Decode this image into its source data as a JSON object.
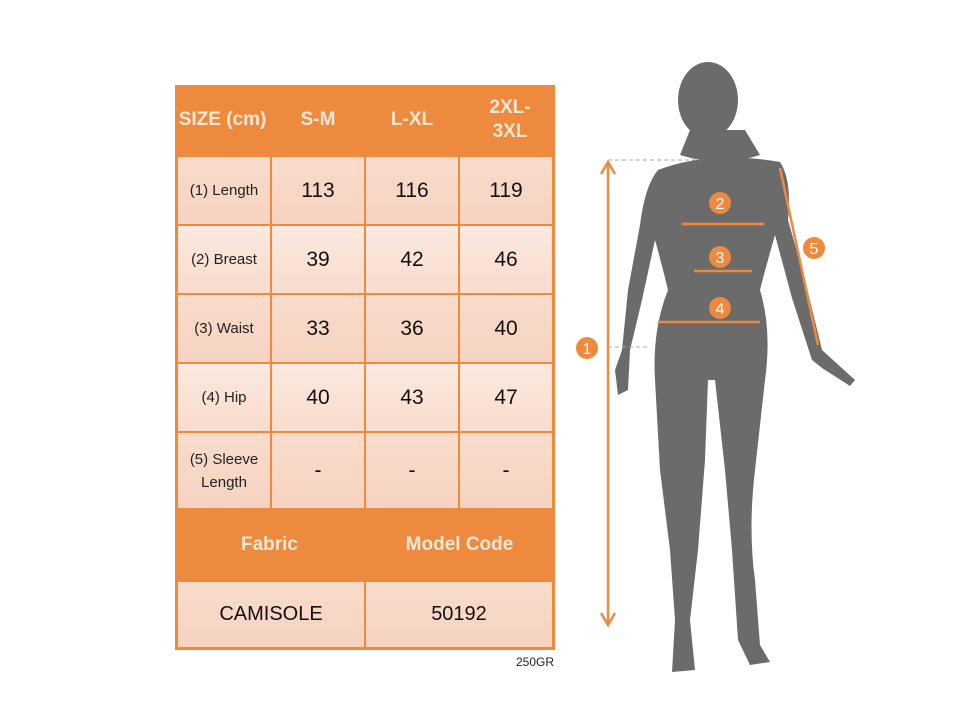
{
  "table": {
    "header": [
      "SIZE (cm)",
      "S-M",
      "L-XL",
      "2XL-3XL"
    ],
    "rows": [
      {
        "label": "(1) Length",
        "values": [
          "113",
          "116",
          "119"
        ]
      },
      {
        "label": "(2) Breast",
        "values": [
          "39",
          "42",
          "46"
        ]
      },
      {
        "label": "(3) Waist",
        "values": [
          "33",
          "36",
          "40"
        ]
      },
      {
        "label": "(4) Hip",
        "values": [
          "40",
          "43",
          "47"
        ]
      },
      {
        "label": "(5) Sleeve Length",
        "values": [
          "-",
          "-",
          "-"
        ]
      }
    ],
    "footer_headers": [
      "Fabric",
      "Model Code"
    ],
    "footer_values": [
      "CAMISOLE",
      "50192"
    ]
  },
  "weight_note": "250GR",
  "figure": {
    "markers": [
      "1",
      "2",
      "3",
      "4",
      "5"
    ],
    "colors": {
      "accent": "#ee8a3e",
      "silhouette": "#6b6b6b"
    }
  }
}
